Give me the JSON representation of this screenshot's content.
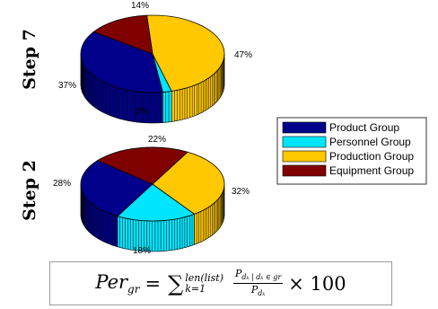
{
  "chart_data": [
    {
      "type": "pie",
      "title": "Step 7",
      "categories": [
        "Product Group",
        "Personnel Group",
        "Production Group",
        "Equipment Group"
      ],
      "values": [
        37,
        2,
        47,
        14
      ],
      "labels": [
        "37%",
        "2%",
        "47%",
        "14%"
      ]
    },
    {
      "type": "pie",
      "title": "Step 2",
      "categories": [
        "Product Group",
        "Personnel Group",
        "Production Group",
        "Equipment Group"
      ],
      "values": [
        28,
        18,
        32,
        22
      ],
      "labels": [
        "28%",
        "18%",
        "32%",
        "22%"
      ]
    }
  ],
  "legend": {
    "placement": "right",
    "items": [
      {
        "label": "Product Group",
        "color": "#00008b"
      },
      {
        "label": "Personnel Group",
        "color": "#00e5ff"
      },
      {
        "label": "Production Group",
        "color": "#ffc800"
      },
      {
        "label": "Equipment Group",
        "color": "#800000"
      }
    ]
  },
  "formula": {
    "lhs_var": "Per",
    "lhs_sub": "gr",
    "sum_upper": "len(list)",
    "sum_lower": "k=1",
    "numerator": "P",
    "numerator_sub": "d_k | d_k ∈ gr",
    "denominator": "P",
    "denominator_sub": "d_k",
    "multiplier": "100"
  }
}
